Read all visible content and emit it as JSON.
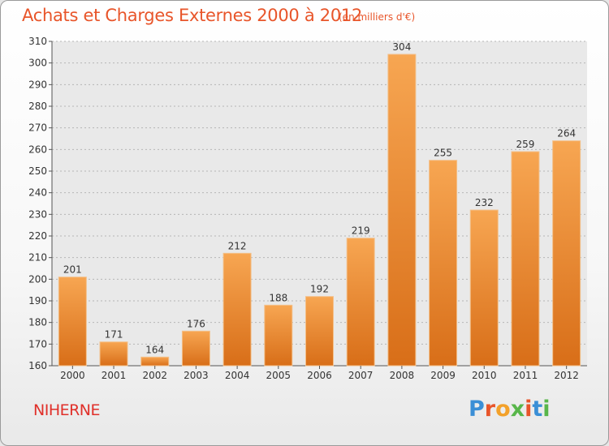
{
  "header": {
    "title": "Achats et Charges Externes 2000 à 2012",
    "subtitle": "(en milliers d'€)"
  },
  "footer": {
    "commune": "NIHERNE",
    "logo_text": "Proxiti"
  },
  "colors": {
    "title": "#e8552a",
    "commune": "#e0302a",
    "bar_top": "#f7a652",
    "bar_bottom": "#d86e18",
    "logo_letters": [
      "#3b8fd6",
      "#e8552a",
      "#f3a12a",
      "#58b64a",
      "#e8552a",
      "#3b8fd6",
      "#58b64a"
    ]
  },
  "chart_data": {
    "type": "bar",
    "title": "Achats et Charges Externes 2000 à 2012",
    "subtitle": "(en milliers d'€)",
    "categories": [
      "2000",
      "2001",
      "2002",
      "2003",
      "2004",
      "2005",
      "2006",
      "2007",
      "2008",
      "2009",
      "2010",
      "2011",
      "2012"
    ],
    "values": [
      201,
      171,
      164,
      176,
      212,
      188,
      192,
      219,
      304,
      255,
      232,
      259,
      264
    ],
    "ylim": [
      160,
      310
    ],
    "yticks": [
      160,
      170,
      180,
      190,
      200,
      210,
      220,
      230,
      240,
      250,
      260,
      270,
      280,
      290,
      300,
      310
    ],
    "grid": true,
    "xlabel": "",
    "ylabel": ""
  }
}
